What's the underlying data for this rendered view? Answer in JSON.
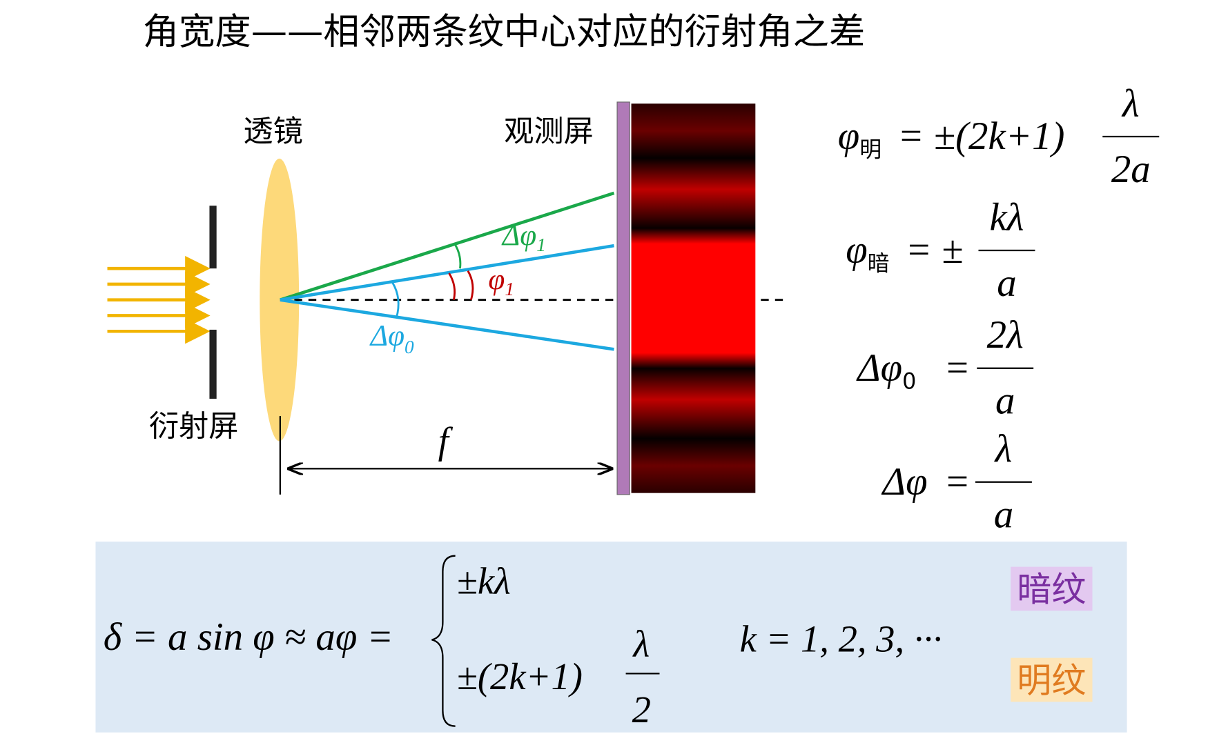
{
  "header": {
    "title": "角宽度——相邻两条纹中心对应的衍射角之差"
  },
  "diagram": {
    "lens_label": "透镜",
    "screen_label": "观测屏",
    "slit_label": "衍射屏",
    "focal_label": "f",
    "angle_labels": [
      {
        "symbol": "Δφ",
        "sub": "1"
      },
      {
        "symbol": "φ",
        "sub": "1"
      },
      {
        "symbol": "Δφ",
        "sub": "0"
      }
    ]
  },
  "formulas": [
    {
      "lhs": "φ",
      "sub": "明",
      "rhs": "= ±(2k+1)",
      "num": "λ",
      "den": "2a"
    },
    {
      "lhs": "φ",
      "sub": "暗",
      "rhs": "= ±",
      "num": "kλ",
      "den": "a"
    },
    {
      "lhs": "Δφ",
      "sub": "0",
      "rhs": "=",
      "num": "2λ",
      "den": "a"
    },
    {
      "lhs": "Δφ",
      "sub": "",
      "rhs": "=",
      "num": "λ",
      "den": "a"
    }
  ],
  "condition": {
    "lhs": "δ = a sin φ ≈ aφ =",
    "dark_case": "±kλ",
    "bright_case": "±(2k+1)",
    "bright_num": "λ",
    "bright_den": "2",
    "k_range": "k = 1, 2, 3, ···",
    "dark_tag": "暗纹",
    "bright_tag": "明纹"
  }
}
